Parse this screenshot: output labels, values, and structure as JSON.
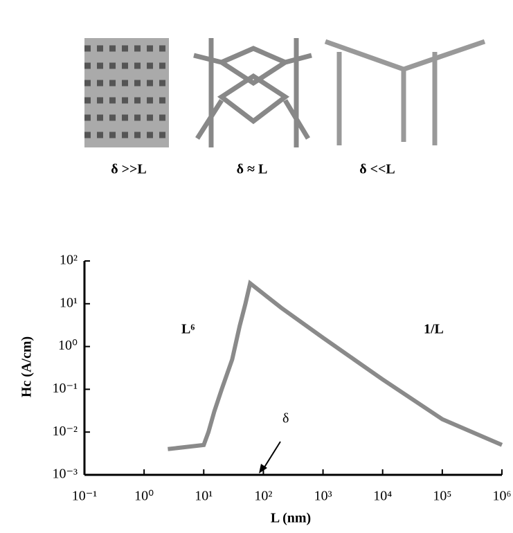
{
  "diagram": {
    "labels": [
      "δ >>L",
      "δ ≈ L",
      "δ <<L"
    ]
  },
  "chart_data": {
    "type": "line",
    "xlog": true,
    "ylog": true,
    "x_label": "L (nm)",
    "y_label": "Hc (A/cm)",
    "annotations": [
      "L⁶",
      "1/L",
      "δ"
    ],
    "x": [
      2.5,
      10,
      12,
      15,
      20,
      30,
      40,
      50,
      60,
      200,
      1000,
      10000,
      100000,
      1000000
    ],
    "series": [
      {
        "color": "#8a8a8a",
        "values": [
          0.004,
          0.005,
          0.01,
          0.03,
          0.1,
          0.5,
          3,
          10,
          30,
          8,
          1.6,
          0.17,
          0.02,
          0.005
        ]
      }
    ],
    "xlim": [
      0.1,
      1000000
    ],
    "ylim": [
      0.001,
      100
    ],
    "xticks": [
      {
        "value": 0.1,
        "label": "10⁻¹"
      },
      {
        "value": 1,
        "label": "10⁰"
      },
      {
        "value": 10,
        "label": "10¹"
      },
      {
        "value": 100,
        "label": "10²"
      },
      {
        "value": 1000,
        "label": "10³"
      },
      {
        "value": 10000,
        "label": "10⁴"
      },
      {
        "value": 100000,
        "label": "10⁵"
      },
      {
        "value": 1000000,
        "label": "10⁶"
      }
    ],
    "yticks": [
      {
        "value": 0.001,
        "label": "10⁻³"
      },
      {
        "value": 0.01,
        "label": "10⁻²"
      },
      {
        "value": 0.1,
        "label": "10⁻¹"
      },
      {
        "value": 1,
        "label": "10⁰"
      },
      {
        "value": 10,
        "label": "10¹"
      },
      {
        "value": 100,
        "label": "10²"
      }
    ]
  }
}
